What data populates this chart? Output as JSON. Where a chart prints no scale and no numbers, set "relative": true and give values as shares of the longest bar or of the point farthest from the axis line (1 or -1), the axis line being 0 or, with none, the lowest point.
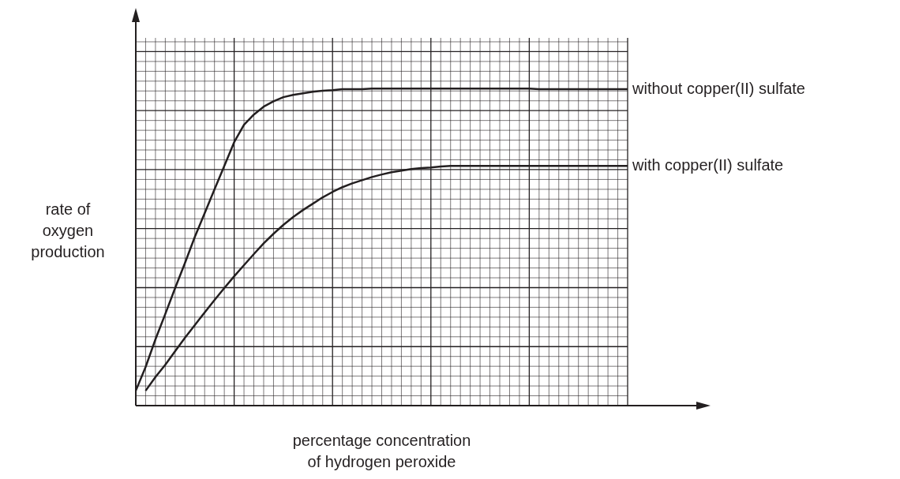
{
  "chart_data": {
    "type": "line",
    "relative": true,
    "grid": true,
    "marker": "none",
    "xlabel": "percentage concentration of hydrogen peroxide",
    "ylabel": "rate of oxygen production",
    "categories": [
      null,
      null,
      null,
      null,
      null,
      null,
      null,
      null,
      null,
      null,
      null,
      null,
      null,
      null,
      null,
      null,
      null,
      null,
      null,
      null,
      null,
      null,
      null,
      null,
      null,
      null,
      null,
      null,
      null,
      null,
      null,
      null,
      null,
      null,
      null,
      null,
      null,
      null,
      null,
      null,
      null,
      null,
      null,
      null,
      null,
      null,
      null,
      null,
      null,
      null,
      null
    ],
    "series": [
      {
        "name": "without copper(II) sulfate",
        "color": "#231f20",
        "values": [
          0.047,
          0.122,
          0.209,
          0.289,
          0.371,
          0.45,
          0.532,
          0.607,
          0.682,
          0.756,
          0.831,
          0.886,
          0.918,
          0.943,
          0.96,
          0.973,
          0.98,
          0.985,
          0.99,
          0.993,
          0.995,
          0.998,
          0.998,
          0.998,
          1,
          1,
          1,
          1,
          1,
          1,
          1,
          1,
          1,
          1,
          1,
          1,
          1,
          1,
          1,
          1,
          1,
          0.998,
          0.998,
          0.998,
          0.998,
          0.998,
          0.998,
          0.998,
          0.998,
          0.998,
          0.998
        ]
      },
      {
        "name": "with copper(II) sulfate",
        "color": "#231f20",
        "values": [
          null,
          0.047,
          0.09,
          0.129,
          0.172,
          0.214,
          0.254,
          0.294,
          0.333,
          0.371,
          0.408,
          0.443,
          0.478,
          0.512,
          0.542,
          0.57,
          0.595,
          0.617,
          0.637,
          0.657,
          0.674,
          0.689,
          0.701,
          0.711,
          0.721,
          0.729,
          0.736,
          0.741,
          0.746,
          0.749,
          0.751,
          0.754,
          0.756,
          0.756,
          0.756,
          0.756,
          0.756,
          0.756,
          0.756,
          0.756,
          0.756,
          0.756,
          0.756,
          0.756,
          0.756,
          0.756,
          0.756,
          0.756,
          0.756,
          0.756,
          0.756
        ]
      }
    ]
  }
}
